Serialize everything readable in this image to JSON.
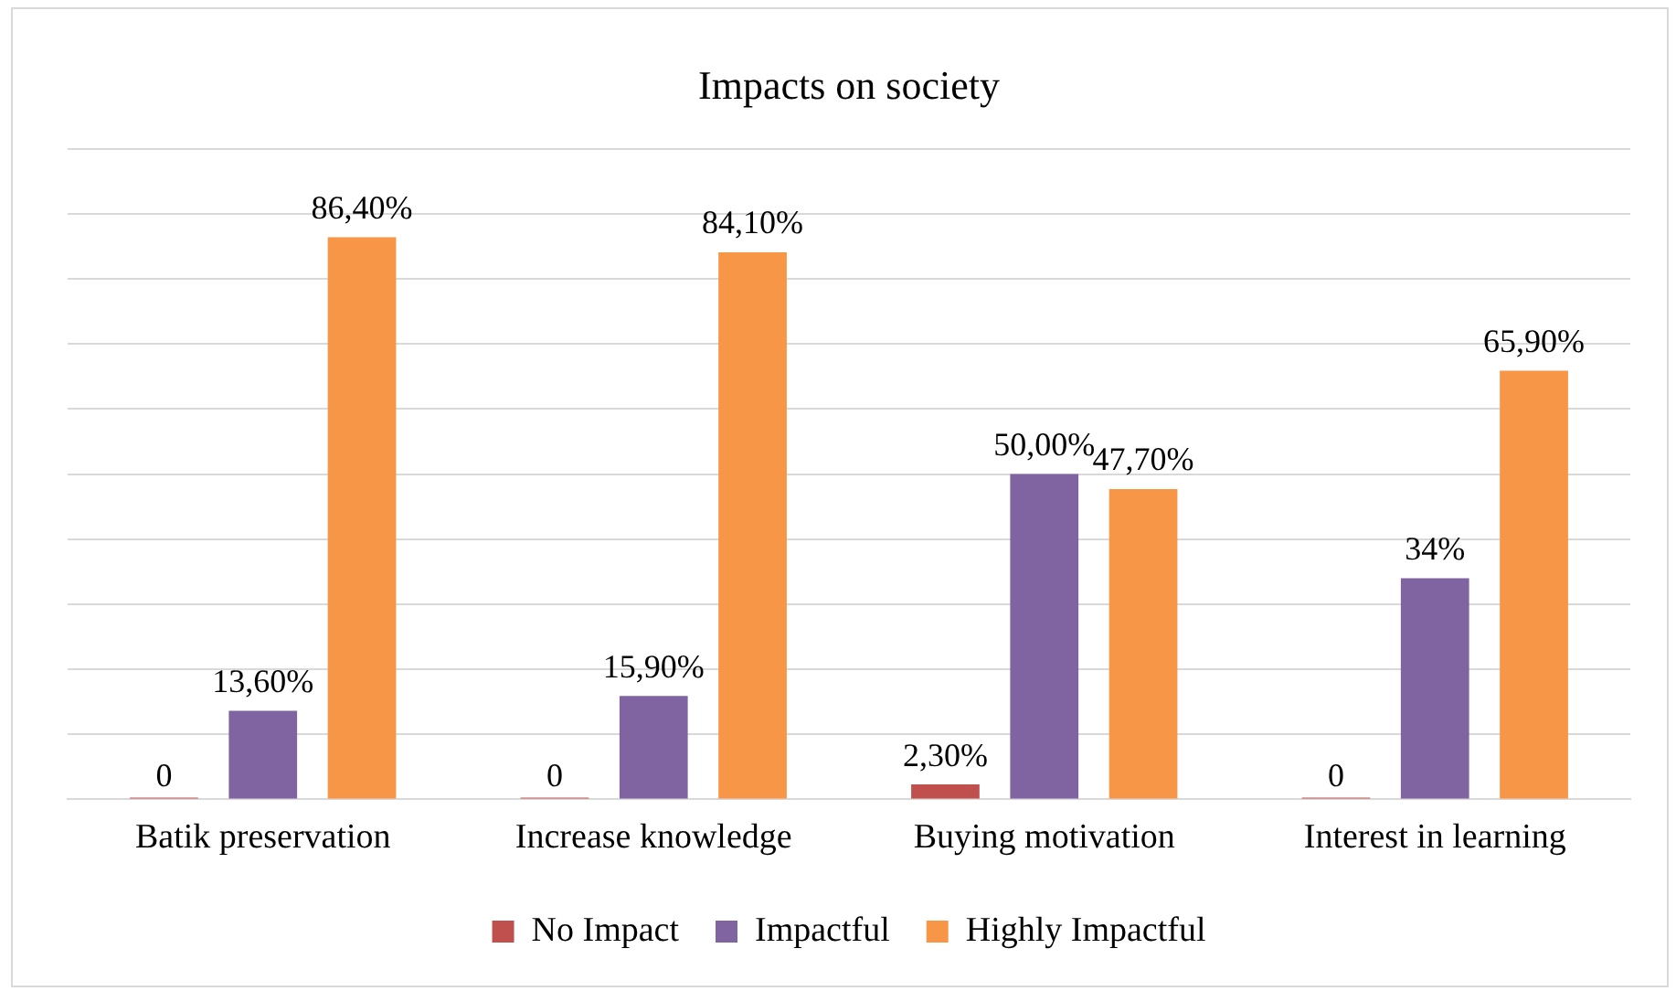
{
  "chart_data": {
    "type": "bar",
    "title": "Impacts on society",
    "categories": [
      "Batik preservation",
      "Increase knowledge",
      "Buying motivation",
      "Interest in learning"
    ],
    "series": [
      {
        "name": "No Impact",
        "color": "#c0504d",
        "values": [
          0,
          0,
          2.3,
          0
        ],
        "value_labels": [
          "0",
          "0",
          "2,30%",
          "0"
        ]
      },
      {
        "name": "Impactful",
        "color": "#8064a2",
        "values": [
          13.6,
          15.9,
          50,
          34
        ],
        "value_labels": [
          "13,60%",
          "15,90%",
          "50,00%",
          "34%"
        ]
      },
      {
        "name": "Highly Impactful",
        "color": "#f79646",
        "values": [
          86.4,
          84.1,
          47.7,
          65.9
        ],
        "value_labels": [
          "86,40%",
          "84,10%",
          "47,70%",
          "65,90%"
        ]
      }
    ],
    "ylim": [
      0,
      100
    ],
    "yticks": [
      {
        "value": 0,
        "label": null
      },
      {
        "value": 10,
        "label": null
      },
      {
        "value": 20,
        "label": null
      },
      {
        "value": 30,
        "label": null
      },
      {
        "value": 40,
        "label": null
      },
      {
        "value": 50,
        "label": null
      },
      {
        "value": 60,
        "label": null
      },
      {
        "value": 70,
        "label": null
      },
      {
        "value": 80,
        "label": null
      },
      {
        "value": 90,
        "label": null
      },
      {
        "value": 100,
        "label": null
      }
    ],
    "grid": "y",
    "legend": "bottom",
    "tick_labels": "x"
  }
}
